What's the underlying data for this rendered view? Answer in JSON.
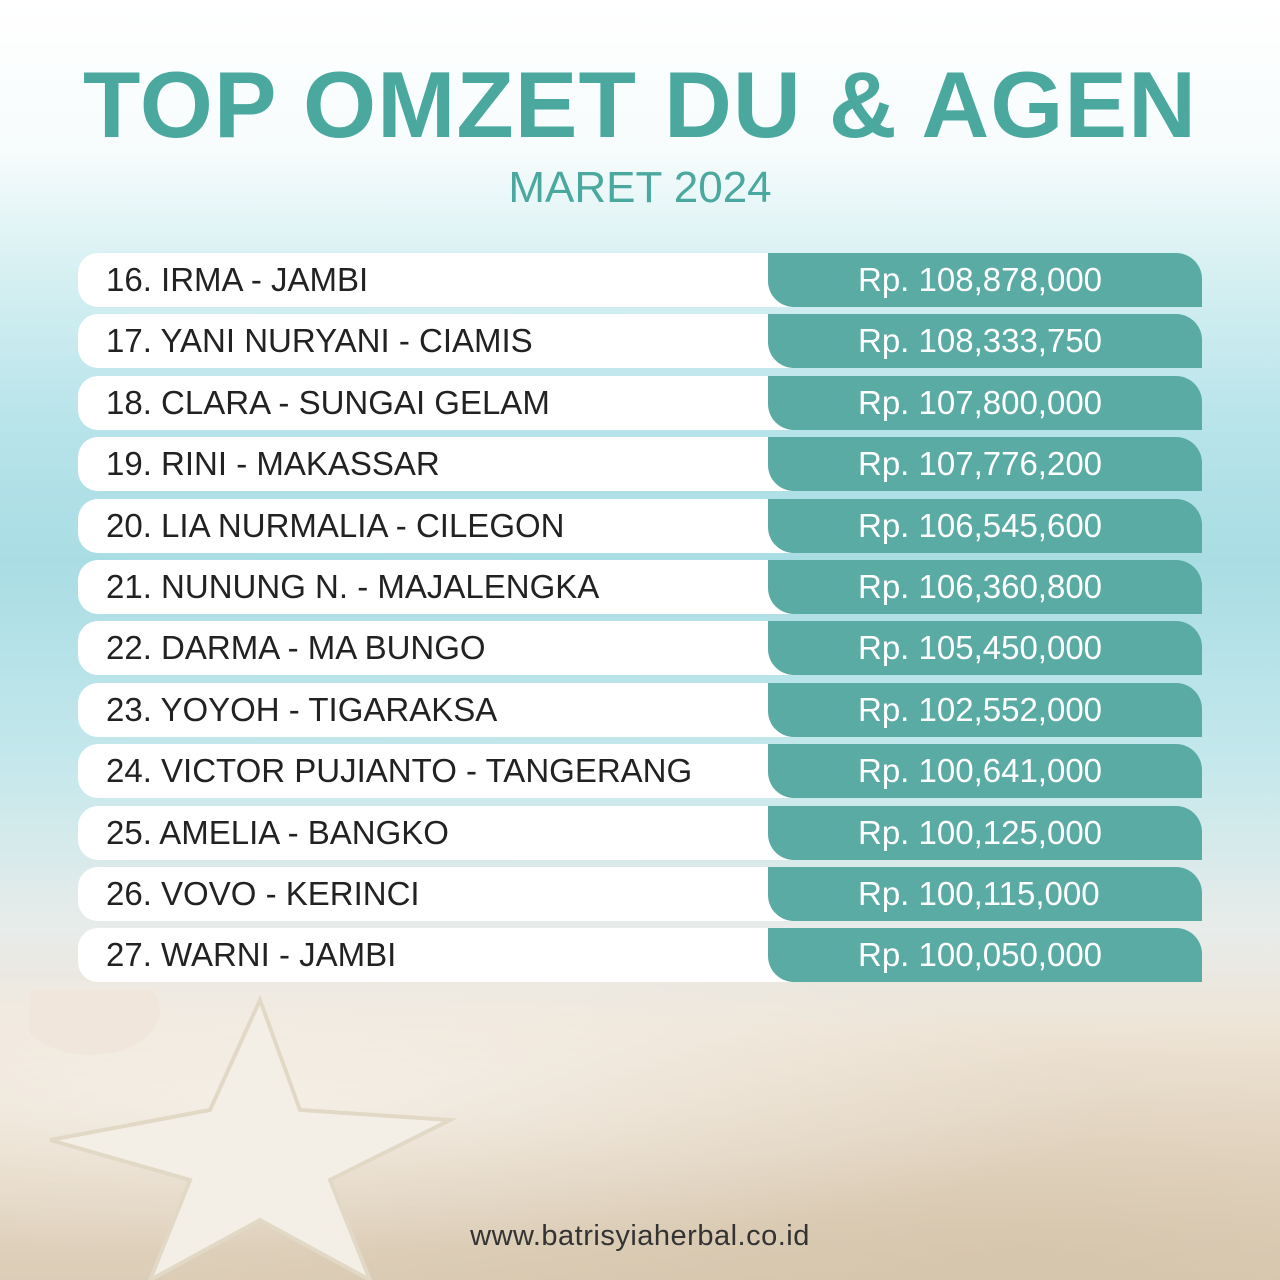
{
  "header": {
    "title": "TOP OMZET DU & AGEN",
    "subtitle": "MARET 2024"
  },
  "colors": {
    "accent": "#4aa89f",
    "amount_bar": "#5aaba4"
  },
  "ranking": [
    {
      "name": "16. IRMA - JAMBI",
      "amount": "Rp. 108,878,000"
    },
    {
      "name": "17. YANI NURYANI - CIAMIS",
      "amount": "Rp. 108,333,750"
    },
    {
      "name": "18. CLARA - SUNGAI GELAM",
      "amount": "Rp. 107,800,000"
    },
    {
      "name": "19. RINI - MAKASSAR",
      "amount": "Rp. 107,776,200"
    },
    {
      "name": "20. LIA NURMALIA - CILEGON",
      "amount": "Rp. 106,545,600"
    },
    {
      "name": "21. NUNUNG N. - MAJALENGKA",
      "amount": "Rp. 106,360,800"
    },
    {
      "name": "22. DARMA - MA BUNGO",
      "amount": "Rp. 105,450,000"
    },
    {
      "name": "23. YOYOH - TIGARAKSA",
      "amount": "Rp. 102,552,000"
    },
    {
      "name": "24. VICTOR PUJIANTO - TANGERANG",
      "amount": "Rp. 100,641,000"
    },
    {
      "name": "25. AMELIA - BANGKO",
      "amount": "Rp. 100,125,000"
    },
    {
      "name": "26. VOVO - KERINCI",
      "amount": "Rp. 100,115,000"
    },
    {
      "name": "27. WARNI - JAMBI",
      "amount": "Rp. 100,050,000"
    }
  ],
  "footer": {
    "website": "www.batrisyiaherbal.co.id"
  }
}
